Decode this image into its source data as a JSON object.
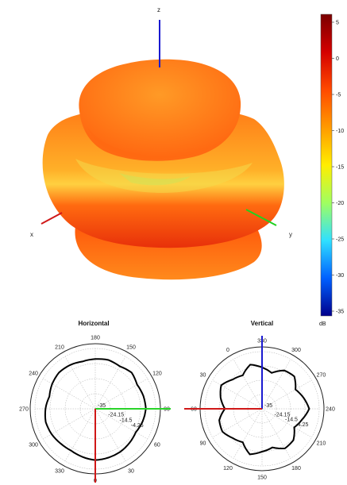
{
  "chart_data": [
    {
      "type": "3d-surface",
      "axes": {
        "x": "x",
        "y": "y",
        "z": "z"
      },
      "colorbar": {
        "unit": "dB",
        "ticks": [
          "5",
          "0",
          "-5",
          "-10",
          "-15",
          "-20",
          "-25",
          "-30",
          "-35"
        ],
        "range": [
          -35,
          5
        ],
        "colors": [
          "#7a0000",
          "#d40000",
          "#ff4a00",
          "#ff9a00",
          "#ffee00",
          "#a0ff60",
          "#30e0ff",
          "#0060ff",
          "#00008c"
        ]
      },
      "surface_colors": {
        "top": "#ff8a1e",
        "band": "#ffd43a",
        "bottom": "#f03a0a"
      }
    },
    {
      "type": "polar",
      "title": "Horizontal",
      "angle_labels": [
        "180",
        "150",
        "120",
        "90",
        "60",
        "30",
        "0",
        "330",
        "300",
        "270",
        "240",
        "210"
      ],
      "radial_labels": [
        "-35",
        "-24.15",
        "-14.5",
        "-4.25"
      ],
      "center_label": "-35",
      "r_range": [
        -35,
        5
      ],
      "pattern_db": [
        -2,
        -1.5,
        -2.5,
        -1,
        -3,
        -2,
        -1.5,
        -2.5,
        -4,
        -3,
        -2,
        -1.5,
        -1,
        -2,
        -3,
        -2.5,
        -1.5,
        -1,
        -2,
        -3.5,
        -2,
        -1,
        -1.5,
        -2.5
      ]
    },
    {
      "type": "polar",
      "title": "Vertical",
      "angle_labels": [
        "330",
        "300",
        "270",
        "240",
        "210",
        "180",
        "150",
        "120",
        "90",
        "60",
        "30",
        "0"
      ],
      "radial_labels": [
        "-35",
        "-24.15",
        "-14.5",
        "-4.25"
      ],
      "center_label": "-35",
      "r_range": [
        -35,
        5
      ],
      "pattern_db": [
        -6,
        -9,
        -4,
        -3,
        -8,
        -5,
        -2,
        -6,
        -9,
        -4,
        -3,
        -7,
        -5,
        -2,
        -8,
        -6,
        -3,
        -4,
        -9,
        -5,
        -2,
        -6,
        -8,
        -3
      ]
    }
  ]
}
